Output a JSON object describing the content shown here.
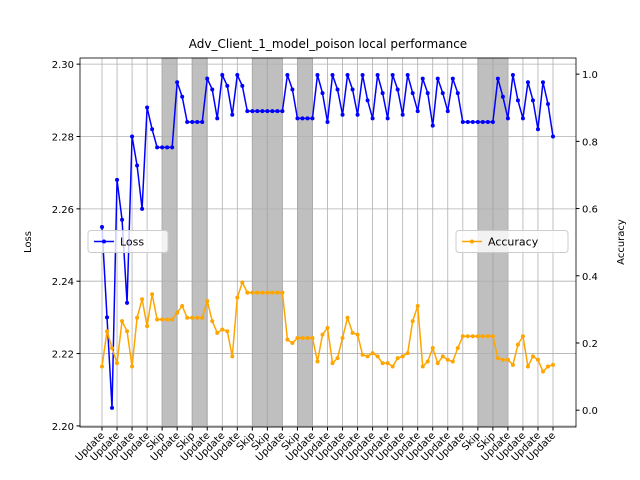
{
  "chart_data": {
    "type": "line",
    "title": "Adv_Client_1_model_poison local performance",
    "y_label": "Loss",
    "y2_label": "Accuracy",
    "categories": [
      "Update",
      null,
      null,
      "Update",
      null,
      null,
      "Update",
      null,
      null,
      "Update",
      null,
      null,
      "Skip",
      null,
      null,
      "Update",
      null,
      null,
      "Skip",
      null,
      null,
      "Update",
      null,
      null,
      "Update",
      null,
      null,
      "Update",
      null,
      null,
      "Skip",
      null,
      null,
      "Skip",
      null,
      null,
      "Update",
      null,
      null,
      "Skip",
      null,
      null,
      "Update",
      null,
      null,
      "Update",
      null,
      null,
      "Update",
      null,
      null,
      "Update",
      null,
      null,
      "Update",
      null,
      null,
      "Update",
      null,
      null,
      "Update",
      null,
      null,
      "Update",
      null,
      null,
      "Update",
      null,
      null,
      "Update",
      null,
      null,
      "Update",
      null,
      null,
      "Skip",
      null,
      null,
      "Skip",
      null,
      null,
      "Update",
      null,
      null,
      "Update",
      null,
      null,
      "Update",
      null,
      null,
      "Update"
    ],
    "shade_category": "Skip",
    "shade_color": "#bfbfbf",
    "grid": true,
    "ylim": [
      2.1997,
      2.3017
    ],
    "yticks": [
      {
        "value": 2.2,
        "label": "2.20"
      },
      {
        "value": 2.22,
        "label": "2.22"
      },
      {
        "value": 2.24,
        "label": "2.24"
      },
      {
        "value": 2.26,
        "label": "2.26"
      },
      {
        "value": 2.28,
        "label": "2.28"
      },
      {
        "value": 2.3,
        "label": "2.30"
      }
    ],
    "y2lim": [
      -0.05,
      1.048
    ],
    "y2ticks": [
      {
        "value": 0,
        "label": "0.0"
      },
      0.2,
      0.4,
      0.6,
      0.8,
      {
        "value": 1,
        "label": "1.0"
      }
    ],
    "series": [
      {
        "name": "Loss",
        "color": "#0000ff",
        "axis": "y",
        "legend_loc": "center left",
        "values": [
          2.255,
          2.23,
          2.205,
          2.268,
          2.257,
          2.234,
          2.28,
          2.272,
          2.26,
          2.288,
          2.282,
          2.277,
          2.277,
          2.277,
          2.277,
          2.295,
          2.291,
          2.284,
          2.284,
          2.284,
          2.284,
          2.296,
          2.293,
          2.285,
          2.297,
          2.294,
          2.286,
          2.297,
          2.294,
          2.287,
          2.287,
          2.287,
          2.287,
          2.287,
          2.287,
          2.287,
          2.287,
          2.297,
          2.293,
          2.285,
          2.285,
          2.285,
          2.285,
          2.297,
          2.292,
          2.284,
          2.297,
          2.293,
          2.286,
          2.297,
          2.293,
          2.286,
          2.297,
          2.29,
          2.285,
          2.297,
          2.292,
          2.285,
          2.297,
          2.293,
          2.286,
          2.297,
          2.292,
          2.287,
          2.296,
          2.292,
          2.283,
          2.296,
          2.292,
          2.287,
          2.296,
          2.292,
          2.284,
          2.284,
          2.284,
          2.284,
          2.284,
          2.284,
          2.284,
          2.296,
          2.291,
          2.285,
          2.297,
          2.29,
          2.285,
          2.295,
          2.29,
          2.282,
          2.295,
          2.289,
          2.28
        ]
      },
      {
        "name": "Accuracy",
        "color": "#ffa500",
        "axis": "y2",
        "legend_loc": "center right",
        "values": [
          0.13,
          0.235,
          0.185,
          0.14,
          0.265,
          0.235,
          0.13,
          0.275,
          0.33,
          0.25,
          0.345,
          0.27,
          0.27,
          0.27,
          0.27,
          0.29,
          0.31,
          0.275,
          0.275,
          0.275,
          0.275,
          0.325,
          0.265,
          0.23,
          0.24,
          0.235,
          0.16,
          0.335,
          0.38,
          0.35,
          0.35,
          0.35,
          0.35,
          0.35,
          0.35,
          0.35,
          0.35,
          0.21,
          0.2,
          0.215,
          0.215,
          0.215,
          0.215,
          0.145,
          0.225,
          0.245,
          0.14,
          0.155,
          0.215,
          0.275,
          0.23,
          0.225,
          0.165,
          0.16,
          0.17,
          0.16,
          0.14,
          0.14,
          0.13,
          0.155,
          0.16,
          0.17,
          0.265,
          0.31,
          0.13,
          0.145,
          0.185,
          0.14,
          0.16,
          0.15,
          0.145,
          0.185,
          0.22,
          0.22,
          0.22,
          0.22,
          0.22,
          0.22,
          0.22,
          0.155,
          0.15,
          0.15,
          0.135,
          0.195,
          0.22,
          0.13,
          0.16,
          0.15,
          0.115,
          0.13,
          0.135
        ]
      }
    ]
  }
}
